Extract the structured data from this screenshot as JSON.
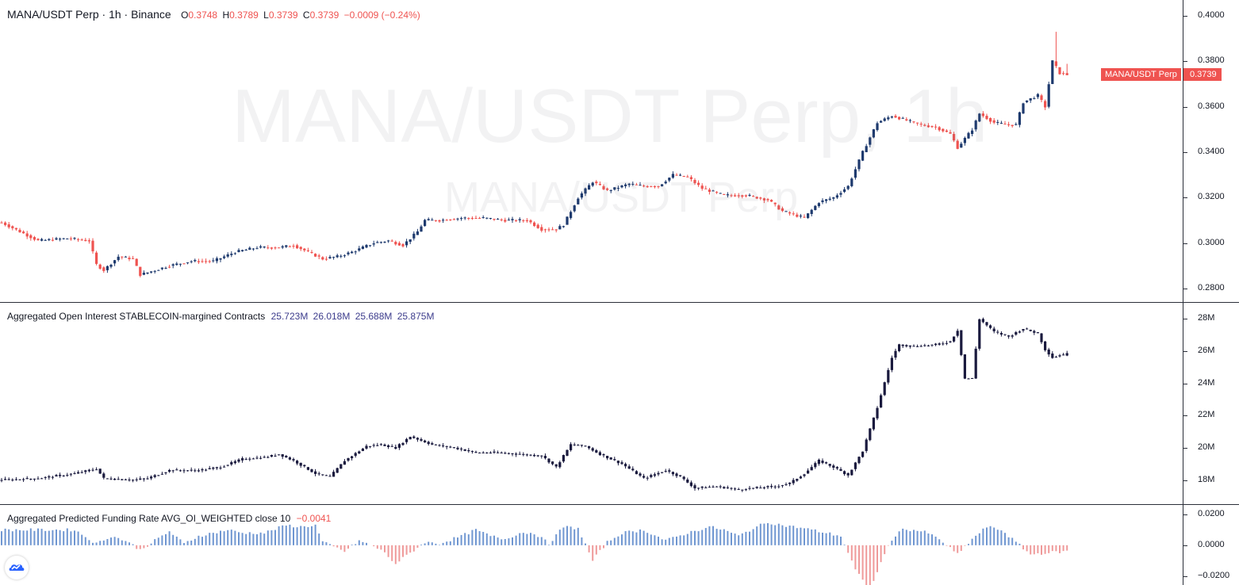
{
  "main_legend": {
    "symbol": "MANA/USDT Perp · 1h · Binance",
    "o_label": "O",
    "o": "0.3748",
    "h_label": "H",
    "h": "0.3789",
    "l_label": "L",
    "l": "0.3739",
    "c_label": "C",
    "c": "0.3739",
    "change": "−0.0009 (−0.24%)"
  },
  "watermark": {
    "big": "MANA/USDT Perp, 1h",
    "small": "MANA/USDT Perp"
  },
  "price_tag": {
    "label": "MANA/USDT Perp",
    "value": "0.3739"
  },
  "oi_legend": {
    "title": "Aggregated Open Interest STABLECOIN-margined Contracts",
    "values": [
      "25.723M",
      "26.018M",
      "25.688M",
      "25.875M"
    ]
  },
  "fr_legend": {
    "title": "Aggregated Predicted Funding Rate AVG_OI_WEIGHTED close 10",
    "value": "−0.0041"
  },
  "price_axis_ticks": [
    "0.4000",
    "0.3800",
    "0.3600",
    "0.3400",
    "0.3200",
    "0.3000",
    "0.2800"
  ],
  "oi_axis_ticks": [
    "28M",
    "26M",
    "24M",
    "22M",
    "20M",
    "18M"
  ],
  "fr_axis_ticks": [
    "0.0200",
    "0.0000",
    "−0.0200"
  ],
  "colors": {
    "up": "#1e3a6e",
    "down": "#ef5350",
    "oi": "#1a1a3e",
    "fr_pos": "#6f96d1",
    "fr_neg": "#ef9a9a"
  },
  "chart_data": [
    {
      "type": "candlestick",
      "title": "MANA/USDT Perp · 1h · Binance",
      "ylim": [
        0.274,
        0.407
      ],
      "series": [
        {
          "name": "MANA/USDT Perp",
          "anchors_close": [
            [
              0,
              0.309
            ],
            [
              10,
              0.301
            ],
            [
              18,
              0.302
            ],
            [
              24,
              0.301
            ],
            [
              26,
              0.2905
            ],
            [
              28,
              0.288
            ],
            [
              32,
              0.294
            ],
            [
              36,
              0.293
            ],
            [
              38,
              0.286
            ],
            [
              42,
              0.288
            ],
            [
              46,
              0.29
            ],
            [
              52,
              0.292
            ],
            [
              58,
              0.292
            ],
            [
              64,
              0.296
            ],
            [
              70,
              0.298
            ],
            [
              76,
              0.298
            ],
            [
              80,
              0.299
            ],
            [
              84,
              0.296
            ],
            [
              88,
              0.293
            ],
            [
              92,
              0.294
            ],
            [
              96,
              0.296
            ],
            [
              102,
              0.3
            ],
            [
              106,
              0.301
            ],
            [
              110,
              0.299
            ],
            [
              114,
              0.305
            ],
            [
              116,
              0.31
            ],
            [
              120,
              0.31
            ],
            [
              126,
              0.311
            ],
            [
              132,
              0.311
            ],
            [
              138,
              0.31
            ],
            [
              144,
              0.31
            ],
            [
              148,
              0.306
            ],
            [
              152,
              0.306
            ],
            [
              154,
              0.308
            ],
            [
              158,
              0.32
            ],
            [
              162,
              0.327
            ],
            [
              166,
              0.323
            ],
            [
              172,
              0.326
            ],
            [
              176,
              0.325
            ],
            [
              180,
              0.325
            ],
            [
              184,
              0.33
            ],
            [
              188,
              0.329
            ],
            [
              192,
              0.324
            ],
            [
              198,
              0.321
            ],
            [
              204,
              0.321
            ],
            [
              210,
              0.319
            ],
            [
              214,
              0.314
            ],
            [
              220,
              0.311
            ],
            [
              224,
              0.318
            ],
            [
              228,
              0.32
            ],
            [
              232,
              0.325
            ],
            [
              236,
              0.34
            ],
            [
              240,
              0.353
            ],
            [
              244,
              0.356
            ],
            [
              248,
              0.354
            ],
            [
              252,
              0.352
            ],
            [
              256,
              0.351
            ],
            [
              260,
              0.348
            ],
            [
              262,
              0.342
            ],
            [
              266,
              0.35
            ],
            [
              268,
              0.357
            ],
            [
              272,
              0.353
            ],
            [
              276,
              0.352
            ],
            [
              278,
              0.352
            ],
            [
              280,
              0.362
            ],
            [
              284,
              0.365
            ],
            [
              286,
              0.36
            ],
            [
              288,
              0.38
            ],
            [
              290,
              0.3748
            ],
            [
              292,
              0.3739
            ]
          ],
          "last": {
            "open": 0.3748,
            "high": 0.3789,
            "low": 0.3739,
            "close": 0.3739
          }
        }
      ]
    },
    {
      "type": "candlestick",
      "title": "Aggregated Open Interest STABLECOIN-margined Contracts",
      "ylim": [
        16.5,
        29.0
      ],
      "series": [
        {
          "name": "Aggregated Open Interest",
          "anchors_close": [
            [
              0,
              18.0
            ],
            [
              10,
              18.1
            ],
            [
              20,
              18.4
            ],
            [
              26,
              18.7
            ],
            [
              28,
              18.1
            ],
            [
              36,
              18.0
            ],
            [
              40,
              18.1
            ],
            [
              46,
              18.6
            ],
            [
              54,
              18.6
            ],
            [
              60,
              18.8
            ],
            [
              66,
              19.3
            ],
            [
              72,
              19.4
            ],
            [
              76,
              19.6
            ],
            [
              80,
              19.2
            ],
            [
              86,
              18.4
            ],
            [
              90,
              18.2
            ],
            [
              94,
              19.2
            ],
            [
              100,
              20.1
            ],
            [
              104,
              20.2
            ],
            [
              108,
              20.0
            ],
            [
              112,
              20.7
            ],
            [
              118,
              20.2
            ],
            [
              124,
              20.0
            ],
            [
              130,
              19.7
            ],
            [
              136,
              19.7
            ],
            [
              142,
              19.6
            ],
            [
              148,
              19.5
            ],
            [
              152,
              18.8
            ],
            [
              156,
              20.2
            ],
            [
              160,
              20.1
            ],
            [
              164,
              19.6
            ],
            [
              170,
              19.0
            ],
            [
              176,
              18.1
            ],
            [
              182,
              18.6
            ],
            [
              186,
              18.2
            ],
            [
              190,
              17.5
            ],
            [
              196,
              17.6
            ],
            [
              202,
              17.4
            ],
            [
              206,
              17.5
            ],
            [
              212,
              17.6
            ],
            [
              216,
              17.8
            ],
            [
              220,
              18.4
            ],
            [
              224,
              19.2
            ],
            [
              228,
              18.8
            ],
            [
              232,
              18.3
            ],
            [
              236,
              19.8
            ],
            [
              240,
              22.5
            ],
            [
              244,
              25.6
            ],
            [
              246,
              26.4
            ],
            [
              250,
              26.3
            ],
            [
              256,
              26.4
            ],
            [
              260,
              26.6
            ],
            [
              262,
              27.3
            ],
            [
              264,
              24.3
            ],
            [
              266,
              24.3
            ],
            [
              268,
              28.0
            ],
            [
              272,
              27.2
            ],
            [
              276,
              26.9
            ],
            [
              280,
              27.4
            ],
            [
              284,
              27.1
            ],
            [
              286,
              26.1
            ],
            [
              288,
              25.6
            ],
            [
              292,
              25.9
            ]
          ],
          "last": {
            "open": 25.723,
            "high": 26.018,
            "low": 25.688,
            "close": 25.875
          }
        }
      ]
    },
    {
      "type": "bar",
      "title": "Aggregated Predicted Funding Rate AVG_OI_WEIGHTED close 10",
      "ylim": [
        -0.032,
        0.02
      ],
      "series": [
        {
          "name": "Aggregated Predicted Funding Rate",
          "anchors": [
            [
              0,
              0.01
            ],
            [
              20,
              0.01
            ],
            [
              26,
              0.001
            ],
            [
              30,
              0.006
            ],
            [
              34,
              0.003
            ],
            [
              38,
              -0.003
            ],
            [
              42,
              0.003
            ],
            [
              46,
              0.009
            ],
            [
              50,
              0.001
            ],
            [
              54,
              0.006
            ],
            [
              58,
              0.008
            ],
            [
              62,
              0.01
            ],
            [
              66,
              0.008
            ],
            [
              72,
              0.008
            ],
            [
              78,
              0.013
            ],
            [
              82,
              0.012
            ],
            [
              86,
              0.013
            ],
            [
              88,
              0.002
            ],
            [
              94,
              -0.004
            ],
            [
              98,
              0.003
            ],
            [
              104,
              -0.003
            ],
            [
              108,
              -0.012
            ],
            [
              112,
              -0.005
            ],
            [
              116,
              0.002
            ],
            [
              120,
              0.001
            ],
            [
              126,
              0.006
            ],
            [
              130,
              0.01
            ],
            [
              134,
              0.006
            ],
            [
              138,
              0.004
            ],
            [
              142,
              0.008
            ],
            [
              146,
              0.008
            ],
            [
              150,
              0.001
            ],
            [
              154,
              0.012
            ],
            [
              158,
              0.011
            ],
            [
              162,
              -0.01
            ],
            [
              166,
              0.002
            ],
            [
              170,
              0.008
            ],
            [
              176,
              0.01
            ],
            [
              182,
              0.003
            ],
            [
              188,
              0.008
            ],
            [
              194,
              0.012
            ],
            [
              198,
              0.01
            ],
            [
              202,
              0.006
            ],
            [
              206,
              0.011
            ],
            [
              210,
              0.015
            ],
            [
              214,
              0.013
            ],
            [
              220,
              0.011
            ],
            [
              226,
              0.008
            ],
            [
              230,
              0.006
            ],
            [
              234,
              -0.016
            ],
            [
              238,
              -0.03
            ],
            [
              242,
              -0.005
            ],
            [
              246,
              0.01
            ],
            [
              250,
              0.01
            ],
            [
              254,
              0.008
            ],
            [
              258,
              0.002
            ],
            [
              262,
              -0.006
            ],
            [
              266,
              0.004
            ],
            [
              270,
              0.012
            ],
            [
              274,
              0.01
            ],
            [
              278,
              0.002
            ],
            [
              282,
              -0.006
            ],
            [
              286,
              -0.005
            ],
            [
              292,
              -0.004
            ]
          ]
        }
      ]
    }
  ]
}
